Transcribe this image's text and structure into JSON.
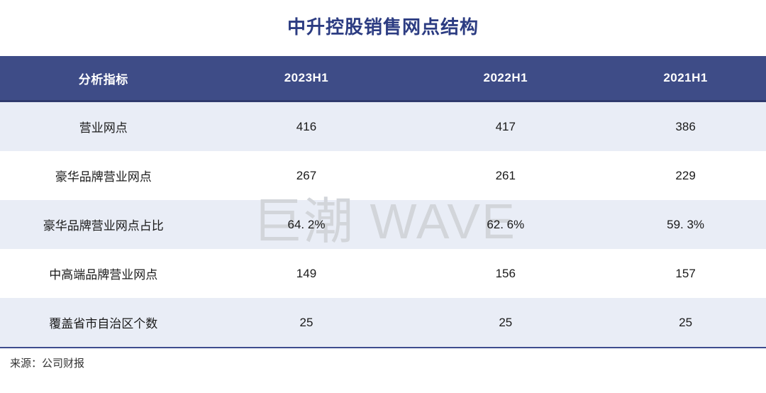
{
  "chart_data": {
    "type": "table",
    "title": "中升控股销售网点结构",
    "columns": [
      "分析指标",
      "2023H1",
      "2022H1",
      "2021H1"
    ],
    "rows": [
      {
        "label": "营业网点",
        "values": [
          "416",
          "417",
          "386"
        ]
      },
      {
        "label": "豪华品牌营业网点",
        "values": [
          "267",
          "261",
          "229"
        ]
      },
      {
        "label": "豪华品牌营业网点占比",
        "values": [
          "64. 2%",
          "62. 6%",
          "59. 3%"
        ]
      },
      {
        "label": "中高端品牌营业网点",
        "values": [
          "149",
          "156",
          "157"
        ]
      },
      {
        "label": "覆盖省市自治区个数",
        "values": [
          "25",
          "25",
          "25"
        ]
      }
    ],
    "watermark": "巨潮 WAVE",
    "source": "来源：公司财报",
    "colors": {
      "header_bg": "#3e4c87",
      "header_text": "#ffffff",
      "row_alt_bg": "#e9edf6",
      "row_bg": "#ffffff",
      "title_text": "#2c3c82",
      "border_line": "#2f3a6d",
      "watermark_text": "#d2d5da"
    },
    "legend_position": "none",
    "grid": false
  }
}
